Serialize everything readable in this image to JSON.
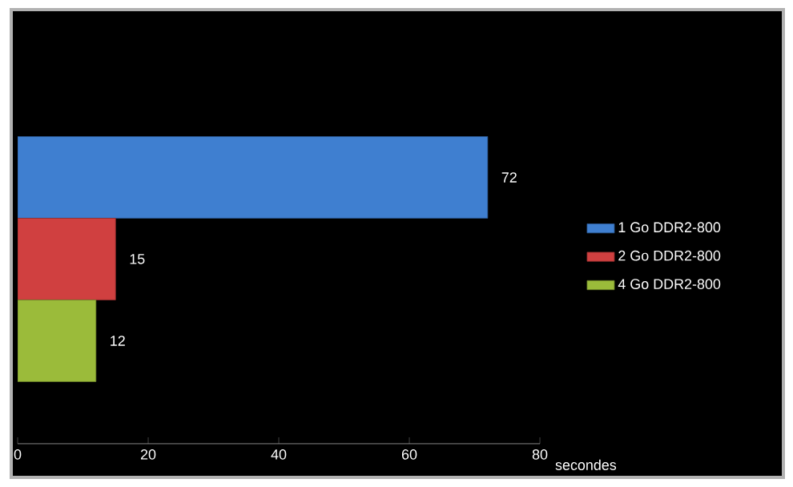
{
  "chart_data": {
    "type": "bar",
    "orientation": "horizontal",
    "xlabel": "secondes",
    "categories": [
      null
    ],
    "series": [
      {
        "name": "1 Go DDR2-800",
        "color": "#3f7fd0",
        "values": [
          72
        ]
      },
      {
        "name": "2 Go DDR2-800",
        "color": "#d04040",
        "values": [
          15
        ]
      },
      {
        "name": "4 Go DDR2-800",
        "color": "#9bbb3a",
        "values": [
          12
        ]
      }
    ],
    "xlim": [
      0,
      80
    ],
    "xticks": [
      0,
      20,
      40,
      60,
      80
    ],
    "data_labels": true,
    "legend": "right",
    "grid": false
  }
}
